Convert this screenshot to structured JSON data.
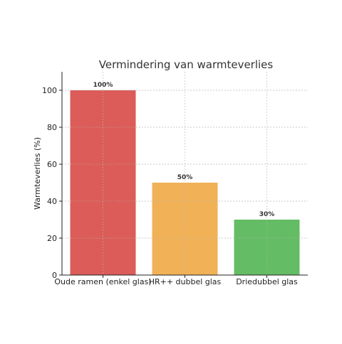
{
  "chart_data": {
    "type": "bar",
    "title": "Vermindering van warmteverlies",
    "xlabel": "",
    "ylabel": "Warmteverlies (%)",
    "categories": [
      "Oude ramen (enkel glas)",
      "HR++ dubbel glas",
      "Driedubbel glas"
    ],
    "values": [
      100,
      50,
      30
    ],
    "data_labels": [
      "100%",
      "50%",
      "30%"
    ],
    "colors": [
      "#d9534f",
      "#f0ad4e",
      "#5cb85c"
    ],
    "ylim": [
      0,
      110
    ],
    "yticks": [
      0,
      20,
      40,
      60,
      80,
      100
    ],
    "ytick_labels": [
      "0",
      "20",
      "40",
      "60",
      "80",
      "100"
    ],
    "grid": true
  }
}
